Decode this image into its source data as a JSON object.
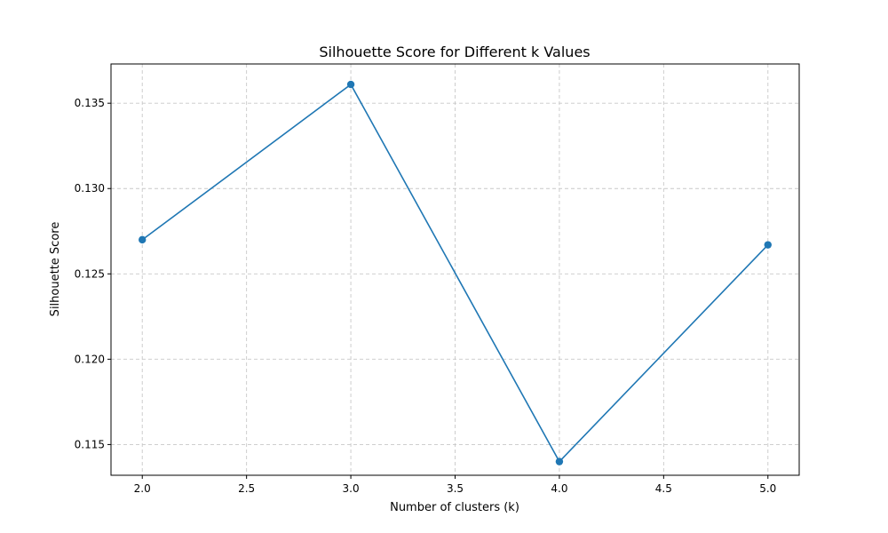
{
  "chart_data": {
    "type": "line",
    "title": "Silhouette Score for Different k Values",
    "xlabel": "Number of clusters (k)",
    "ylabel": "Silhouette Score",
    "x": [
      2,
      3,
      4,
      5
    ],
    "series": [
      {
        "values": [
          0.127,
          0.1361,
          0.114,
          0.1267
        ]
      }
    ],
    "xlim": [
      1.85,
      5.15
    ],
    "ylim": [
      0.1132,
      0.1373
    ],
    "xticks": [
      2.0,
      2.5,
      3.0,
      3.5,
      4.0,
      4.5,
      5.0
    ],
    "xtick_labels": [
      "2.0",
      "2.5",
      "3.0",
      "3.5",
      "4.0",
      "4.5",
      "5.0"
    ],
    "yticks": [
      0.115,
      0.12,
      0.125,
      0.13,
      0.135
    ],
    "ytick_labels": [
      "0.115",
      "0.120",
      "0.125",
      "0.130",
      "0.135"
    ],
    "grid": true,
    "marker": "circle",
    "line_color": "#1f77b4"
  }
}
